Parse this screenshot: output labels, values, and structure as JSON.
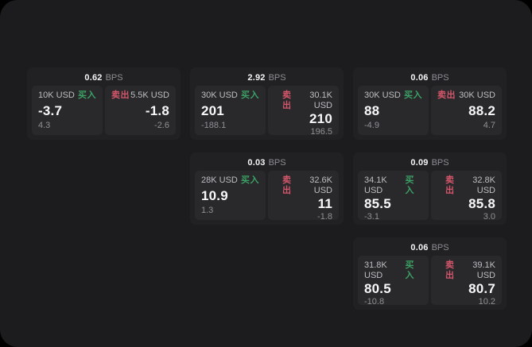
{
  "theme": {
    "window_bg": "#1c1c1e",
    "card_bg": "#212124",
    "tile_bg": "#29292c",
    "buy_green": "#3ca065",
    "sell_red": "#d4566a",
    "value_white": "#f7f8f9",
    "muted_gray": "#8f9093"
  },
  "labels": {
    "bps": "BPS",
    "buy": "买入",
    "sell": "卖出"
  },
  "cards": [
    {
      "bps": "0.62",
      "row": 1,
      "col": 1,
      "buy": {
        "notional": "10K USD",
        "price": "-3.7",
        "change": "4.3"
      },
      "sell": {
        "notional": "5.5K USD",
        "price": "-1.8",
        "change": "-2.6"
      }
    },
    {
      "bps": "2.92",
      "row": 1,
      "col": 2,
      "buy": {
        "notional": "30K USD",
        "price": "201",
        "change": "-188.1"
      },
      "sell": {
        "notional": "30.1K USD",
        "price": "210",
        "change": "196.5"
      }
    },
    {
      "bps": "0.06",
      "row": 1,
      "col": 3,
      "buy": {
        "notional": "30K USD",
        "price": "88",
        "change": "-4.9"
      },
      "sell": {
        "notional": "30K USD",
        "price": "88.2",
        "change": "4.7"
      }
    },
    {
      "bps": "0.03",
      "row": 2,
      "col": 2,
      "buy": {
        "notional": "28K USD",
        "price": "10.9",
        "change": "1.3"
      },
      "sell": {
        "notional": "32.6K USD",
        "price": "11",
        "change": "-1.8"
      }
    },
    {
      "bps": "0.09",
      "row": 2,
      "col": 3,
      "buy": {
        "notional": "34.1K USD",
        "price": "85.5",
        "change": "-3.1"
      },
      "sell": {
        "notional": "32.8K USD",
        "price": "85.8",
        "change": "3.0"
      }
    },
    {
      "bps": "0.06",
      "row": 3,
      "col": 3,
      "buy": {
        "notional": "31.8K USD",
        "price": "80.5",
        "change": "-10.8"
      },
      "sell": {
        "notional": "39.1K USD",
        "price": "80.7",
        "change": "10.2"
      }
    }
  ]
}
